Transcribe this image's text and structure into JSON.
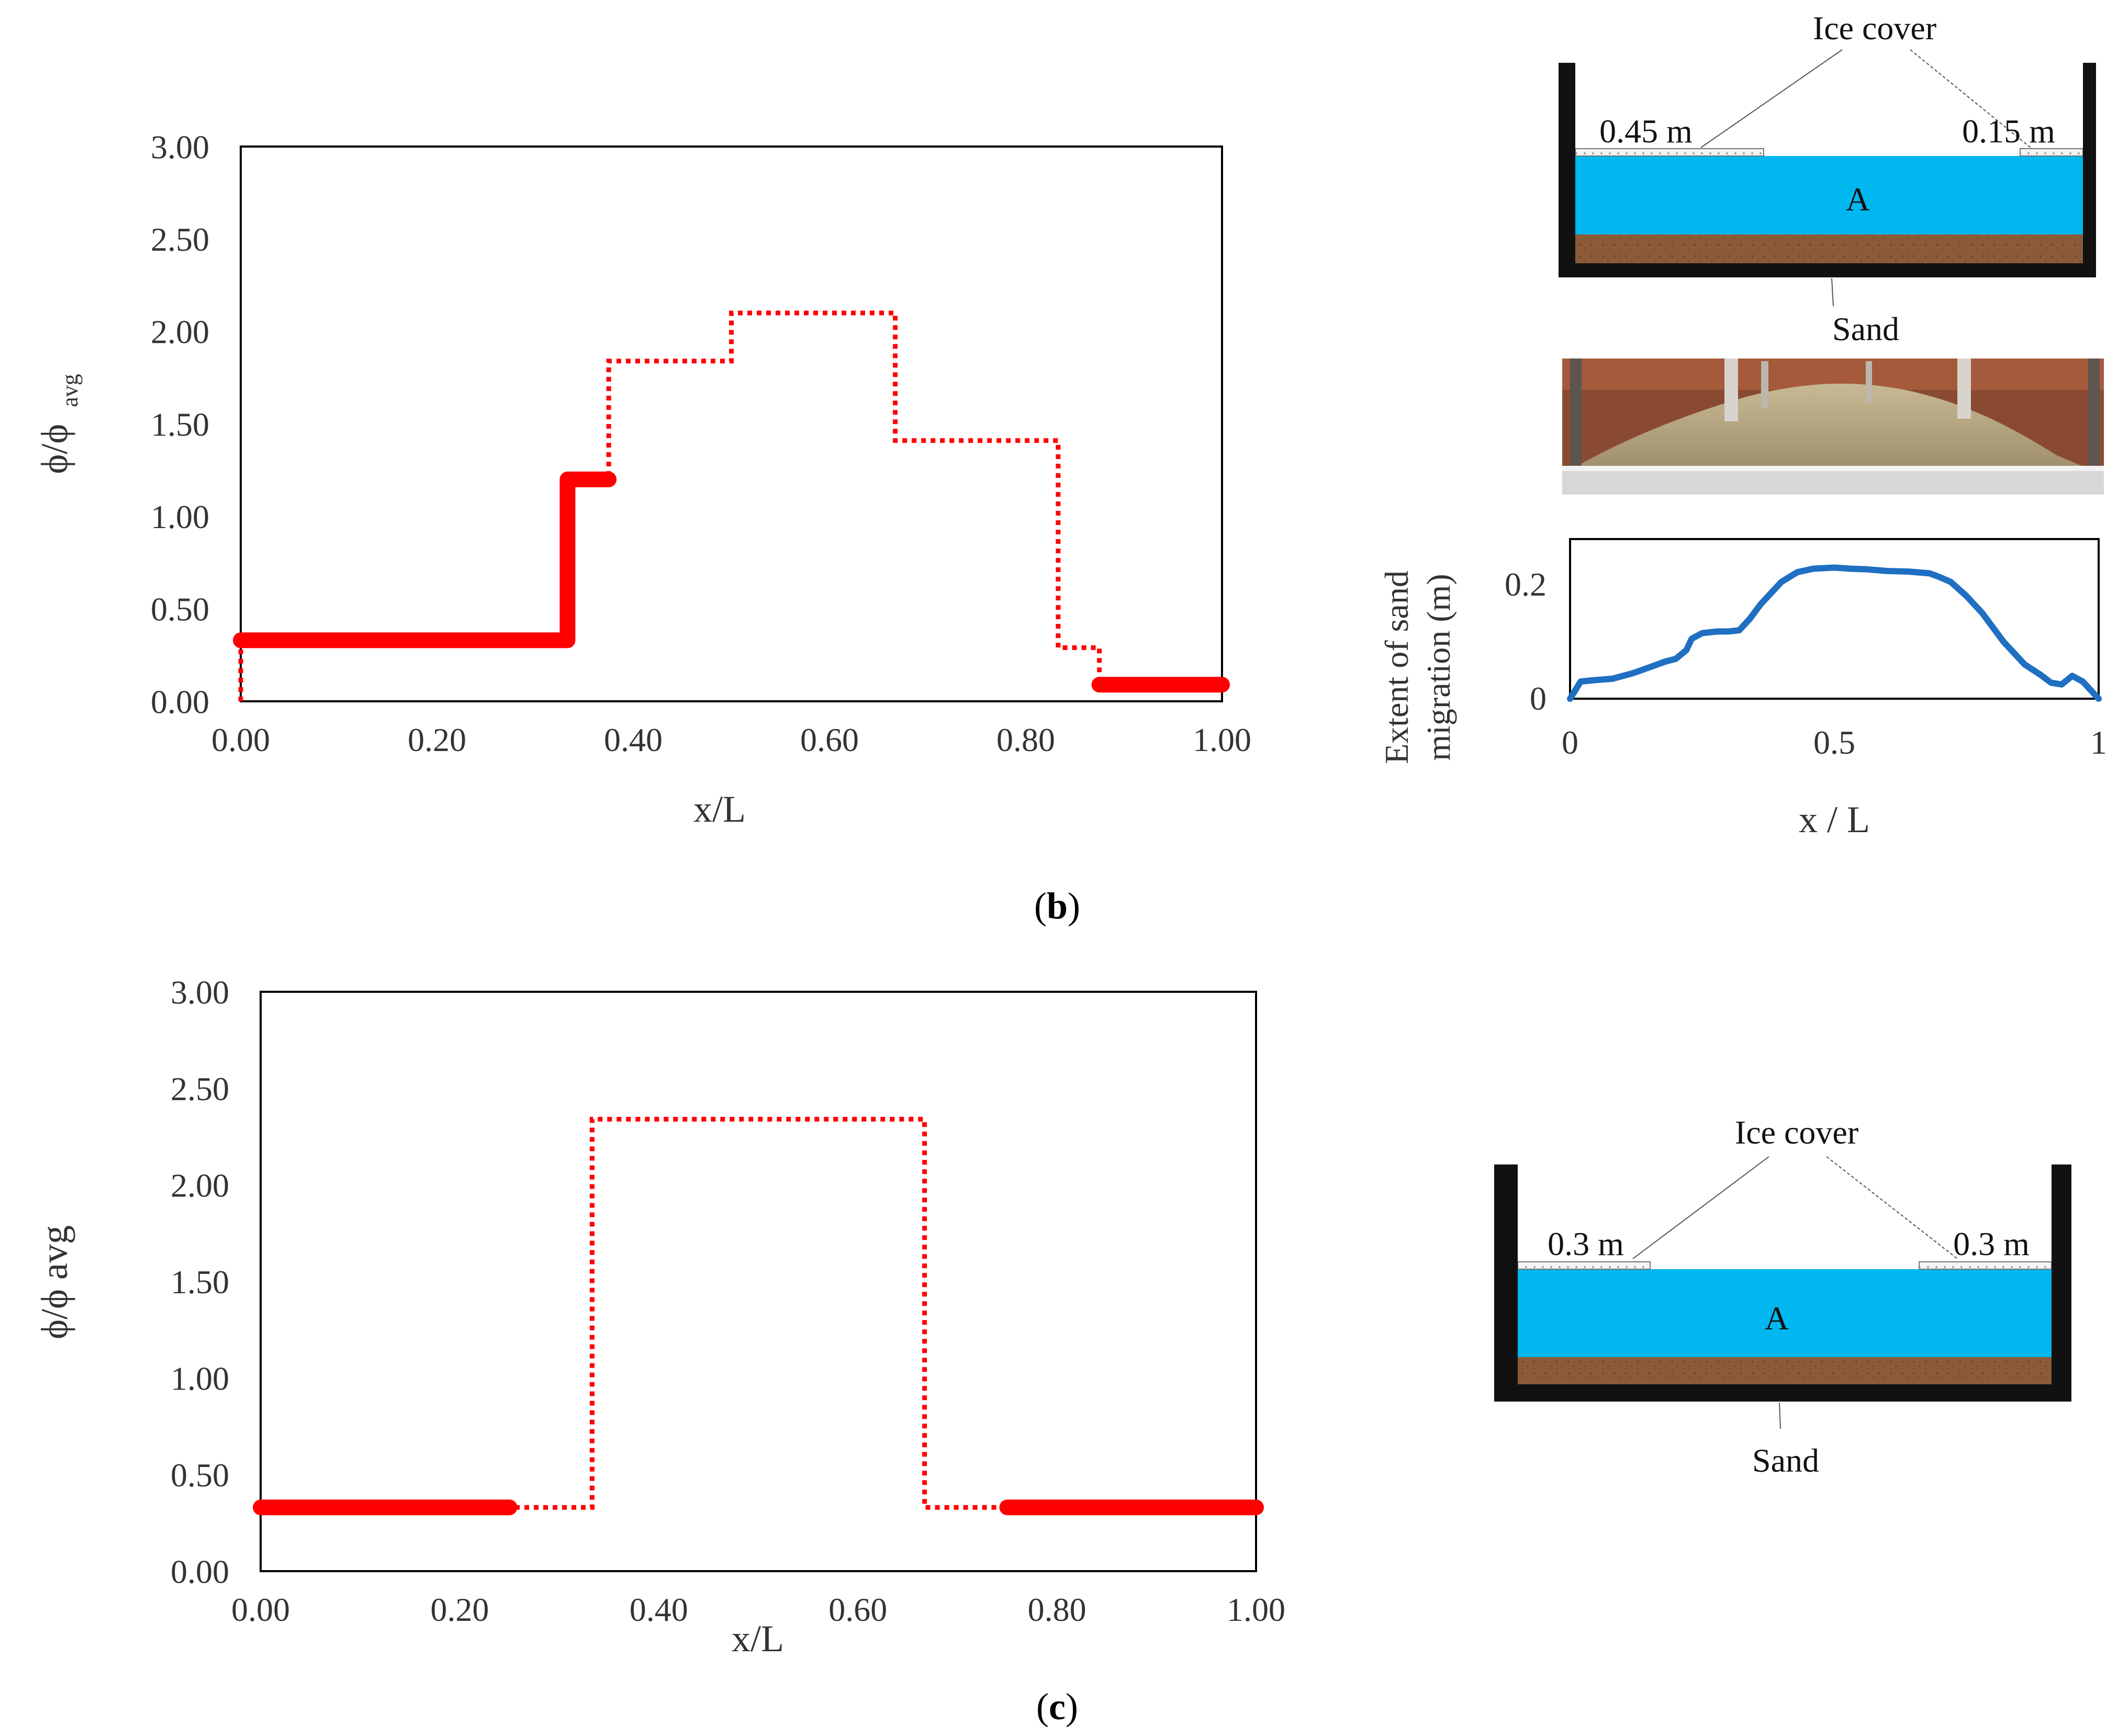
{
  "panels": {
    "b": {
      "label_open": "(",
      "label_letter": "b",
      "label_close": ")"
    },
    "c": {
      "label_open": "(",
      "label_letter": "c",
      "label_close": ")"
    }
  },
  "colors": {
    "series": "#ff0000",
    "water": "#00b7ef",
    "sand": "#8b5a36",
    "tank": "#111111",
    "profile": "#1f6fc2"
  },
  "chart_data": [
    {
      "id": "b-main",
      "type": "line",
      "style": "step",
      "xlabel": "x/L",
      "ylabel": "ϕ/ϕ",
      "ylabel_sub": "avg",
      "xlim": [
        0,
        1
      ],
      "ylim": [
        0,
        3
      ],
      "x_ticks": [
        "0.00",
        "0.20",
        "0.40",
        "0.60",
        "0.80",
        "1.00"
      ],
      "y_ticks": [
        "0.00",
        "0.50",
        "1.00",
        "1.50",
        "2.00",
        "2.50",
        "3.00"
      ],
      "grid": false,
      "series": [
        {
          "line": "dotted",
          "points": [
            [
              0.0,
              0.0
            ],
            [
              0.0,
              0.33
            ],
            [
              0.333,
              0.33
            ],
            [
              0.333,
              1.2
            ],
            [
              0.375,
              1.2
            ],
            [
              0.375,
              1.84
            ],
            [
              0.5,
              1.84
            ],
            [
              0.5,
              2.1
            ],
            [
              0.667,
              2.1
            ],
            [
              0.667,
              1.41
            ],
            [
              0.833,
              1.41
            ],
            [
              0.833,
              0.29
            ],
            [
              0.875,
              0.29
            ],
            [
              0.875,
              0.09
            ],
            [
              1.0,
              0.09
            ]
          ]
        },
        {
          "line": "solid",
          "segments": [
            [
              [
                0.0,
                0.33
              ],
              [
                0.333,
                0.33
              ],
              [
                0.333,
                1.2
              ],
              [
                0.375,
                1.2
              ]
            ],
            [
              [
                0.875,
                0.09
              ],
              [
                1.0,
                0.09
              ]
            ]
          ]
        }
      ]
    },
    {
      "id": "b-inset",
      "type": "line",
      "xlabel": "x / L",
      "ylabel_line1": "Extent of sand",
      "ylabel_line2": "migration (m)",
      "xlim": [
        0,
        1
      ],
      "ylim": [
        0,
        0.28
      ],
      "x_ticks": [
        "0",
        "0.5",
        "1"
      ],
      "y_ticks": [
        "0",
        "0.2"
      ],
      "grid": false,
      "series": [
        {
          "x": [
            0.0,
            0.02,
            0.04,
            0.08,
            0.1,
            0.12,
            0.15,
            0.18,
            0.2,
            0.22,
            0.23,
            0.25,
            0.28,
            0.3,
            0.32,
            0.34,
            0.36,
            0.38,
            0.4,
            0.43,
            0.46,
            0.5,
            0.53,
            0.56,
            0.6,
            0.64,
            0.68,
            0.7,
            0.72,
            0.75,
            0.78,
            0.82,
            0.86,
            0.89,
            0.91,
            0.93,
            0.95,
            0.97,
            1.0
          ],
          "y": [
            0.0,
            0.03,
            0.032,
            0.035,
            0.04,
            0.045,
            0.055,
            0.065,
            0.07,
            0.085,
            0.105,
            0.115,
            0.118,
            0.118,
            0.12,
            0.14,
            0.165,
            0.185,
            0.205,
            0.222,
            0.228,
            0.23,
            0.228,
            0.227,
            0.224,
            0.223,
            0.22,
            0.213,
            0.205,
            0.18,
            0.15,
            0.1,
            0.06,
            0.042,
            0.028,
            0.025,
            0.04,
            0.03,
            0.0
          ]
        }
      ]
    },
    {
      "id": "c-main",
      "type": "line",
      "style": "step",
      "xlabel": "x/L",
      "ylabel": "ϕ/ϕ avg",
      "xlim": [
        0,
        1
      ],
      "ylim": [
        0,
        3
      ],
      "x_ticks": [
        "0.00",
        "0.20",
        "0.40",
        "0.60",
        "0.80",
        "1.00"
      ],
      "y_ticks": [
        "0.00",
        "0.50",
        "1.00",
        "1.50",
        "2.00",
        "2.50",
        "3.00"
      ],
      "grid": false,
      "series": [
        {
          "line": "dotted",
          "points": [
            [
              0.0,
              0.33
            ],
            [
              0.333,
              0.33
            ],
            [
              0.333,
              2.34
            ],
            [
              0.667,
              2.34
            ],
            [
              0.667,
              0.33
            ],
            [
              1.0,
              0.33
            ]
          ]
        },
        {
          "line": "solid",
          "segments": [
            [
              [
                0.0,
                0.33
              ],
              [
                0.25,
                0.33
              ]
            ],
            [
              [
                0.75,
                0.33
              ],
              [
                1.0,
                0.33
              ]
            ]
          ]
        }
      ]
    }
  ],
  "diagrams": {
    "b": {
      "ice_cover": "Ice cover",
      "left_ice": "0.45 m",
      "right_ice": "0.15 m",
      "water_label": "A",
      "sand_label": "Sand"
    },
    "c": {
      "ice_cover": "Ice cover",
      "left_ice": "0.3 m",
      "right_ice": "0.3 m",
      "water_label": "A",
      "sand_label": "Sand"
    }
  }
}
